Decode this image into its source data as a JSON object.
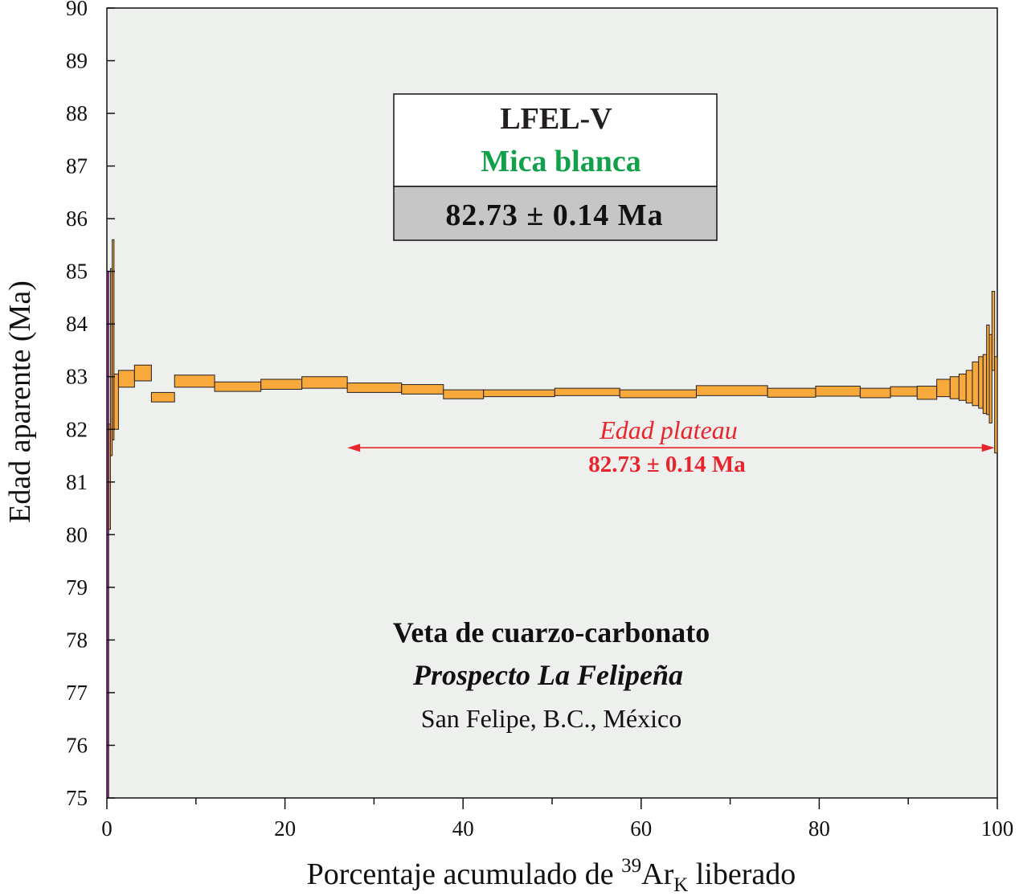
{
  "chart_data": {
    "type": "step",
    "xlabel_prefix": "Porcentaje acumulado de ",
    "xlabel_sup": "39",
    "xlabel_mid": "Ar",
    "xlabel_sub": "K",
    "xlabel_suffix": " liberado",
    "ylabel": "Edad aparente (Ma)",
    "xlim": [
      0,
      100
    ],
    "ylim": [
      75,
      90
    ],
    "x_ticks": [
      0,
      20,
      40,
      60,
      80,
      100
    ],
    "y_ticks": [
      75,
      76,
      77,
      78,
      79,
      80,
      81,
      82,
      83,
      84,
      85,
      86,
      87,
      88,
      89,
      90
    ],
    "steps": [
      {
        "x0": 0.0,
        "x1": 0.2,
        "lo": 75.0,
        "hi": 85.0,
        "color": "#9b1c9b"
      },
      {
        "x0": 0.2,
        "x1": 0.4,
        "lo": 80.1,
        "hi": 82.1,
        "color": "#f7a93b"
      },
      {
        "x0": 0.4,
        "x1": 0.6,
        "lo": 81.5,
        "hi": 85.05,
        "color": "#f7a93b"
      },
      {
        "x0": 0.6,
        "x1": 0.8,
        "lo": 81.8,
        "hi": 85.6,
        "color": "#f7a93b"
      },
      {
        "x0": 0.8,
        "x1": 1.3,
        "lo": 82.0,
        "hi": 83.05,
        "color": "#f7a93b"
      },
      {
        "x0": 1.3,
        "x1": 3.1,
        "lo": 82.8,
        "hi": 83.12,
        "color": "#f7a93b"
      },
      {
        "x0": 3.1,
        "x1": 5.0,
        "lo": 82.92,
        "hi": 83.22,
        "color": "#f7a93b"
      },
      {
        "x0": 5.0,
        "x1": 7.6,
        "lo": 82.52,
        "hi": 82.7,
        "color": "#f7a93b"
      },
      {
        "x0": 7.6,
        "x1": 12.1,
        "lo": 82.8,
        "hi": 83.03,
        "color": "#f7a93b"
      },
      {
        "x0": 12.1,
        "x1": 17.3,
        "lo": 82.72,
        "hi": 82.9,
        "color": "#f7a93b"
      },
      {
        "x0": 17.3,
        "x1": 21.9,
        "lo": 82.76,
        "hi": 82.95,
        "color": "#f7a93b"
      },
      {
        "x0": 21.9,
        "x1": 27.0,
        "lo": 82.78,
        "hi": 83.0,
        "color": "#f7a93b"
      },
      {
        "x0": 27.0,
        "x1": 33.1,
        "lo": 82.7,
        "hi": 82.88,
        "color": "#f7a93b"
      },
      {
        "x0": 33.1,
        "x1": 37.8,
        "lo": 82.67,
        "hi": 82.85,
        "color": "#f7a93b"
      },
      {
        "x0": 37.8,
        "x1": 42.3,
        "lo": 82.58,
        "hi": 82.75,
        "color": "#f7a93b"
      },
      {
        "x0": 42.3,
        "x1": 50.3,
        "lo": 82.62,
        "hi": 82.75,
        "color": "#f7a93b"
      },
      {
        "x0": 50.3,
        "x1": 57.6,
        "lo": 82.64,
        "hi": 82.78,
        "color": "#f7a93b"
      },
      {
        "x0": 57.6,
        "x1": 66.2,
        "lo": 82.6,
        "hi": 82.75,
        "color": "#f7a93b"
      },
      {
        "x0": 66.2,
        "x1": 74.2,
        "lo": 82.64,
        "hi": 82.83,
        "color": "#f7a93b"
      },
      {
        "x0": 74.2,
        "x1": 79.6,
        "lo": 82.61,
        "hi": 82.78,
        "color": "#f7a93b"
      },
      {
        "x0": 79.6,
        "x1": 84.6,
        "lo": 82.63,
        "hi": 82.82,
        "color": "#f7a93b"
      },
      {
        "x0": 84.6,
        "x1": 88.0,
        "lo": 82.6,
        "hi": 82.78,
        "color": "#f7a93b"
      },
      {
        "x0": 88.0,
        "x1": 91.0,
        "lo": 82.63,
        "hi": 82.81,
        "color": "#f7a93b"
      },
      {
        "x0": 91.0,
        "x1": 93.2,
        "lo": 82.57,
        "hi": 82.82,
        "color": "#f7a93b"
      },
      {
        "x0": 93.2,
        "x1": 94.7,
        "lo": 82.62,
        "hi": 82.95,
        "color": "#f7a93b"
      },
      {
        "x0": 94.7,
        "x1": 95.7,
        "lo": 82.58,
        "hi": 83.0,
        "color": "#f7a93b"
      },
      {
        "x0": 95.7,
        "x1": 96.5,
        "lo": 82.55,
        "hi": 83.05,
        "color": "#f7a93b"
      },
      {
        "x0": 96.5,
        "x1": 97.2,
        "lo": 82.5,
        "hi": 83.12,
        "color": "#f7a93b"
      },
      {
        "x0": 97.2,
        "x1": 97.9,
        "lo": 82.45,
        "hi": 83.28,
        "color": "#f7a93b"
      },
      {
        "x0": 97.9,
        "x1": 98.4,
        "lo": 82.4,
        "hi": 83.38,
        "color": "#f7a93b"
      },
      {
        "x0": 98.4,
        "x1": 98.8,
        "lo": 82.3,
        "hi": 83.42,
        "color": "#f7a93b"
      },
      {
        "x0": 98.8,
        "x1": 99.1,
        "lo": 82.28,
        "hi": 83.98,
        "color": "#f7a93b"
      },
      {
        "x0": 99.1,
        "x1": 99.4,
        "lo": 82.12,
        "hi": 83.8,
        "color": "#f7a93b"
      },
      {
        "x0": 99.4,
        "x1": 99.7,
        "lo": 83.12,
        "hi": 84.62,
        "color": "#f7a93b"
      },
      {
        "x0": 99.7,
        "x1": 100.0,
        "lo": 81.55,
        "hi": 83.38,
        "color": "#f7a93b"
      }
    ],
    "plateau": {
      "x0": 27.0,
      "x1": 99.7,
      "y": 81.65
    },
    "plateau_label": "Edad plateau",
    "plateau_value": "82.73 ± 0.14 Ma",
    "box": {
      "sample": "LFEL-V",
      "mineral": "Mica blanca",
      "age": "82.73 ± 0.14 Ma"
    },
    "location": {
      "line1": "Veta de cuarzo-carbonato",
      "line2": "Prospecto La Felipeña",
      "line3": "San Felipe, B.C., México"
    },
    "colors": {
      "plot_bg": "#eef0ee",
      "step_fill": "#f7a93b",
      "first_step": "#9b1c9b",
      "plateau": "#e8252c",
      "mineral": "#12a04a",
      "age_box": "#c6c6c6"
    }
  }
}
